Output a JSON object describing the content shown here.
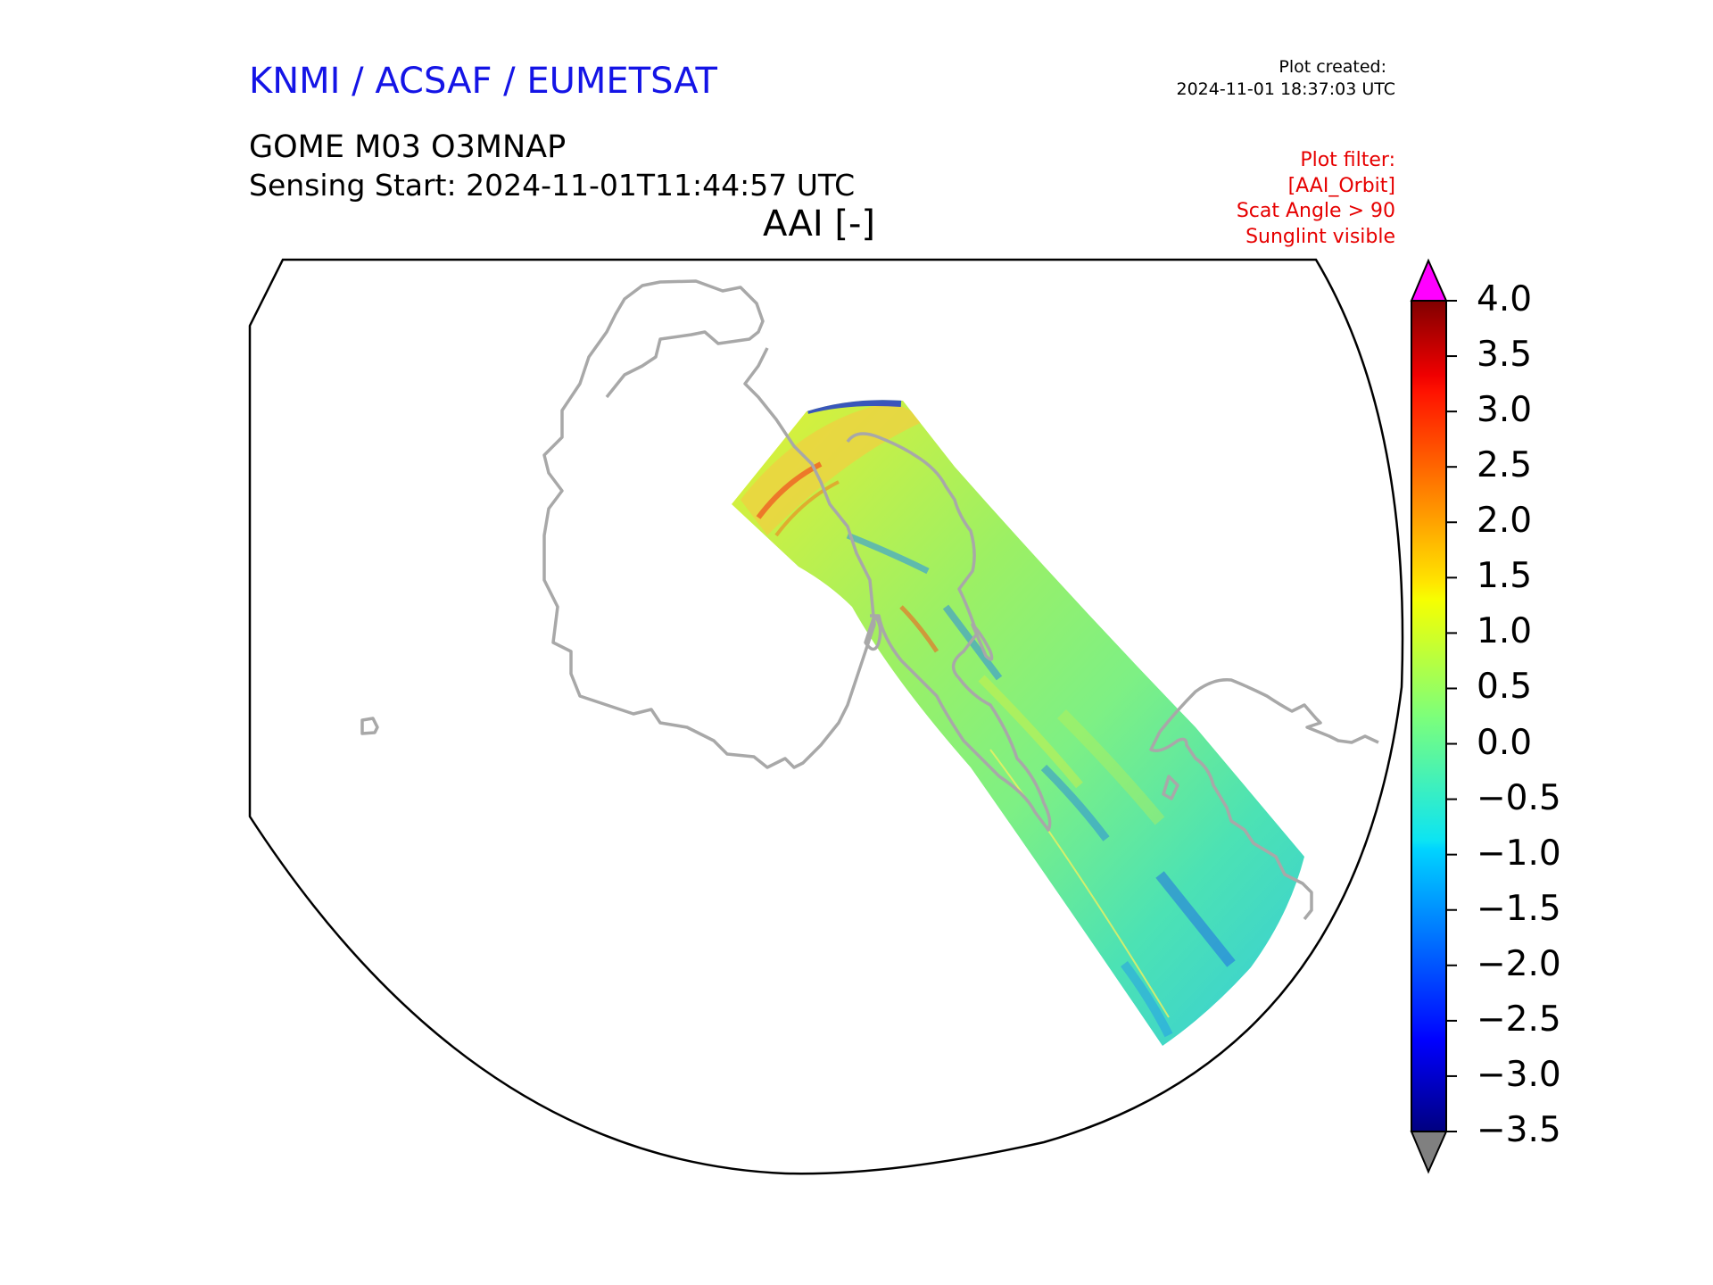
{
  "header": {
    "organization": "KNMI / ACSAF / EUMETSAT",
    "plot_created_label": "Plot created:",
    "plot_created_time": "2024-11-01 18:37:03 UTC",
    "product": "GOME M03 O3MNAP",
    "sensing_start": "Sensing Start: 2024-11-01T11:44:57 UTC",
    "variable": "AAI [-]"
  },
  "plot_filter": {
    "lines": [
      "Plot filter:",
      "[AAI_Orbit]",
      "Scat Angle > 90",
      "Sunglint visible"
    ]
  },
  "colorbar": {
    "min": -3.5,
    "max": 4.0,
    "ticks": [
      "4.0",
      "3.5",
      "3.0",
      "2.5",
      "2.0",
      "1.5",
      "1.0",
      "0.5",
      "0.0",
      "−0.5",
      "−1.0",
      "−1.5",
      "−2.0",
      "−2.5",
      "−3.0",
      "−3.5"
    ],
    "over_color": "#ff00ff",
    "under_color": "#808080",
    "colormap": "jet"
  },
  "map": {
    "coastline_color": "#a8a8a8",
    "swath_dominant_value_range": [
      -1.0,
      1.5
    ]
  }
}
